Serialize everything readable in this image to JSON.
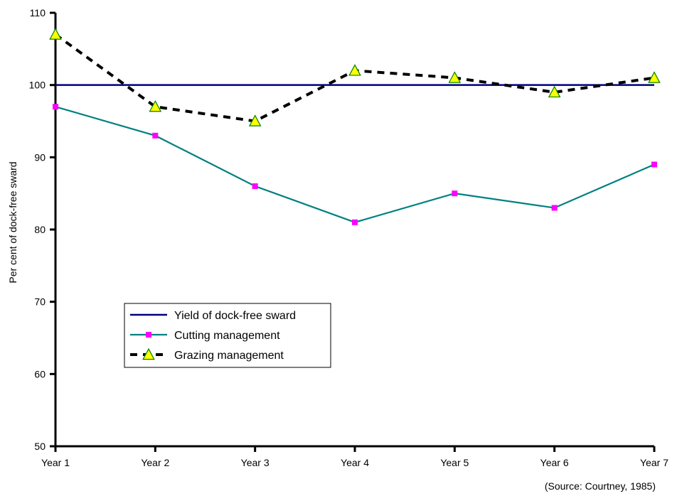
{
  "chart_data": {
    "type": "line",
    "categories": [
      "Year 1",
      "Year 2",
      "Year 3",
      "Year 4",
      "Year 5",
      "Year 6",
      "Year 7"
    ],
    "ylabel": "Per cent of dock-free sward",
    "ylim": [
      50,
      110
    ],
    "yticks": [
      50,
      60,
      70,
      80,
      90,
      100,
      110
    ],
    "grid": false,
    "legend_placement": "lower-left",
    "series": [
      {
        "name": "Yield of dock-free sward",
        "values": [
          100,
          100,
          100,
          100,
          100,
          100,
          100
        ],
        "color": "#000080",
        "style": "solid",
        "marker": "none"
      },
      {
        "name": "Cutting management",
        "values": [
          97,
          93,
          86,
          81,
          85,
          83,
          89
        ],
        "color": "#008080",
        "style": "solid",
        "marker": "square",
        "marker_color": "#ff00ff"
      },
      {
        "name": "Grazing management",
        "values": [
          107,
          97,
          95,
          102,
          101,
          99,
          101
        ],
        "color": "#000000",
        "style": "dashed",
        "marker": "triangle",
        "marker_color": "#ffff00"
      }
    ]
  },
  "source_note": "(Source: Courtney, 1985)"
}
